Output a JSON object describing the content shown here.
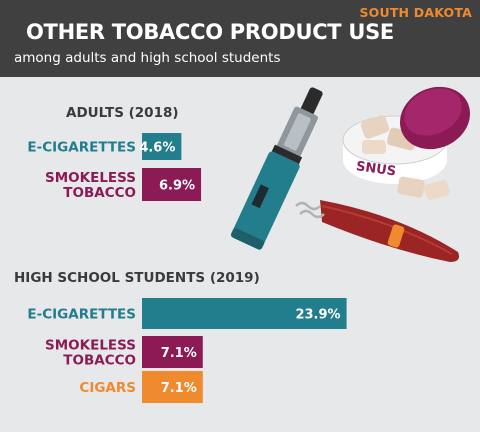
{
  "header": {
    "state": "SOUTH DAKOTA",
    "title": "OTHER TOBACCO PRODUCT USE",
    "subtitle": "among adults and high school students"
  },
  "illustration": {
    "snus_label": "SNUS"
  },
  "colors": {
    "e_cigarettes": "#227d8c",
    "smokeless_tobacco": "#8b1a55",
    "cigars": "#ef8a2e",
    "header_bg": "#404041",
    "page_bg": "#e7e8ea"
  },
  "chart_data": {
    "type": "bar",
    "orientation": "horizontal",
    "unit": "%",
    "xlim": [
      0,
      25
    ],
    "groups": [
      {
        "label": "ADULTS (2018)",
        "bars": [
          {
            "label_lines": [
              "E-CIGARETTES"
            ],
            "value": 4.6,
            "value_label": "4.6%",
            "color": "#227d8c"
          },
          {
            "label_lines": [
              "SMOKELESS",
              "TOBACCO"
            ],
            "value": 6.9,
            "value_label": "6.9%",
            "color": "#8b1a55"
          }
        ]
      },
      {
        "label": "HIGH SCHOOL STUDENTS (2019)",
        "bars": [
          {
            "label_lines": [
              "E-CIGARETTES"
            ],
            "value": 23.9,
            "value_label": "23.9%",
            "color": "#227d8c"
          },
          {
            "label_lines": [
              "SMOKELESS",
              "TOBACCO"
            ],
            "value": 7.1,
            "value_label": "7.1%",
            "color": "#8b1a55"
          },
          {
            "label_lines": [
              "CIGARS"
            ],
            "value": 7.1,
            "value_label": "7.1%",
            "color": "#ef8a2e"
          }
        ]
      }
    ]
  }
}
